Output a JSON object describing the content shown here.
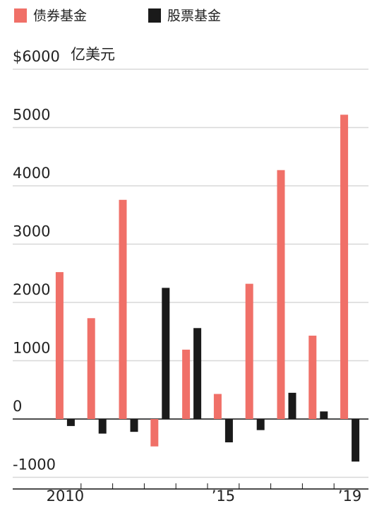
{
  "chart_data": {
    "type": "bar",
    "y_unit": "亿美元",
    "categories": [
      "2010",
      null,
      null,
      null,
      null,
      "’15",
      null,
      null,
      null,
      "’19"
    ],
    "series": [
      {
        "name": "债券基金",
        "color": "#f07068",
        "values": [
          2520,
          1730,
          3760,
          -470,
          1190,
          430,
          2320,
          4270,
          1430,
          5220
        ]
      },
      {
        "name": "股票基金",
        "color": "#1a1a1a",
        "values": [
          -120,
          -250,
          -220,
          2250,
          1560,
          -400,
          -190,
          450,
          130,
          -730
        ]
      }
    ],
    "ylim": [
      -1200,
      6000
    ],
    "yticks": [
      -1000,
      0,
      1000,
      2000,
      3000,
      4000,
      5000,
      {
        "value": 6000,
        "label": "$6000"
      }
    ],
    "grid": true
  }
}
